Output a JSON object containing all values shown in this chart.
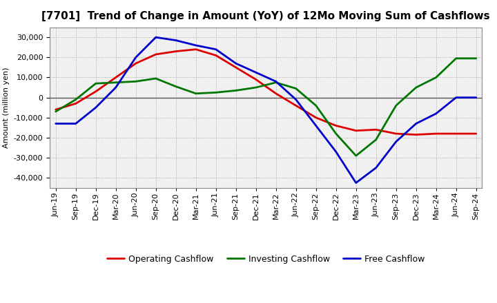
{
  "title": "[7701]  Trend of Change in Amount (YoY) of 12Mo Moving Sum of Cashflows",
  "ylabel": "Amount (million yen)",
  "x_labels": [
    "Jun-19",
    "Sep-19",
    "Dec-19",
    "Mar-20",
    "Jun-20",
    "Sep-20",
    "Dec-20",
    "Mar-21",
    "Jun-21",
    "Sep-21",
    "Dec-21",
    "Mar-22",
    "Jun-22",
    "Sep-22",
    "Dec-22",
    "Mar-23",
    "Jun-23",
    "Sep-23",
    "Dec-23",
    "Mar-24",
    "Jun-24",
    "Sep-24"
  ],
  "operating": [
    -6000,
    -3000,
    3000,
    10000,
    17000,
    21500,
    23000,
    24000,
    21000,
    15000,
    9000,
    2000,
    -4000,
    -10000,
    -14000,
    -16500,
    -16000,
    -18000,
    -18500,
    -18000,
    -18000,
    -18000
  ],
  "investing": [
    -7000,
    -1000,
    7000,
    7500,
    8000,
    9500,
    5500,
    2000,
    2500,
    3500,
    5000,
    7500,
    4500,
    -4000,
    -18000,
    -29000,
    -21000,
    -4000,
    5000,
    10000,
    19500,
    19500
  ],
  "free": [
    -13000,
    -13000,
    -5000,
    5000,
    20000,
    30000,
    28500,
    26000,
    24000,
    17000,
    12500,
    8000,
    -1000,
    -14000,
    -27000,
    -42500,
    -35000,
    -22000,
    -13000,
    -8000,
    0,
    0
  ],
  "ylim": [
    -45000,
    35000
  ],
  "yticks": [
    -40000,
    -30000,
    -20000,
    -10000,
    0,
    10000,
    20000,
    30000
  ],
  "operating_color": "#dd0000",
  "investing_color": "#007700",
  "free_color": "#0000cc",
  "bg_color": "#ffffff",
  "plot_bg_color": "#f0f0f0",
  "grid_color": "#999999",
  "linewidth": 2.0,
  "title_fontsize": 11,
  "label_fontsize": 8,
  "tick_fontsize": 8,
  "legend_fontsize": 9
}
